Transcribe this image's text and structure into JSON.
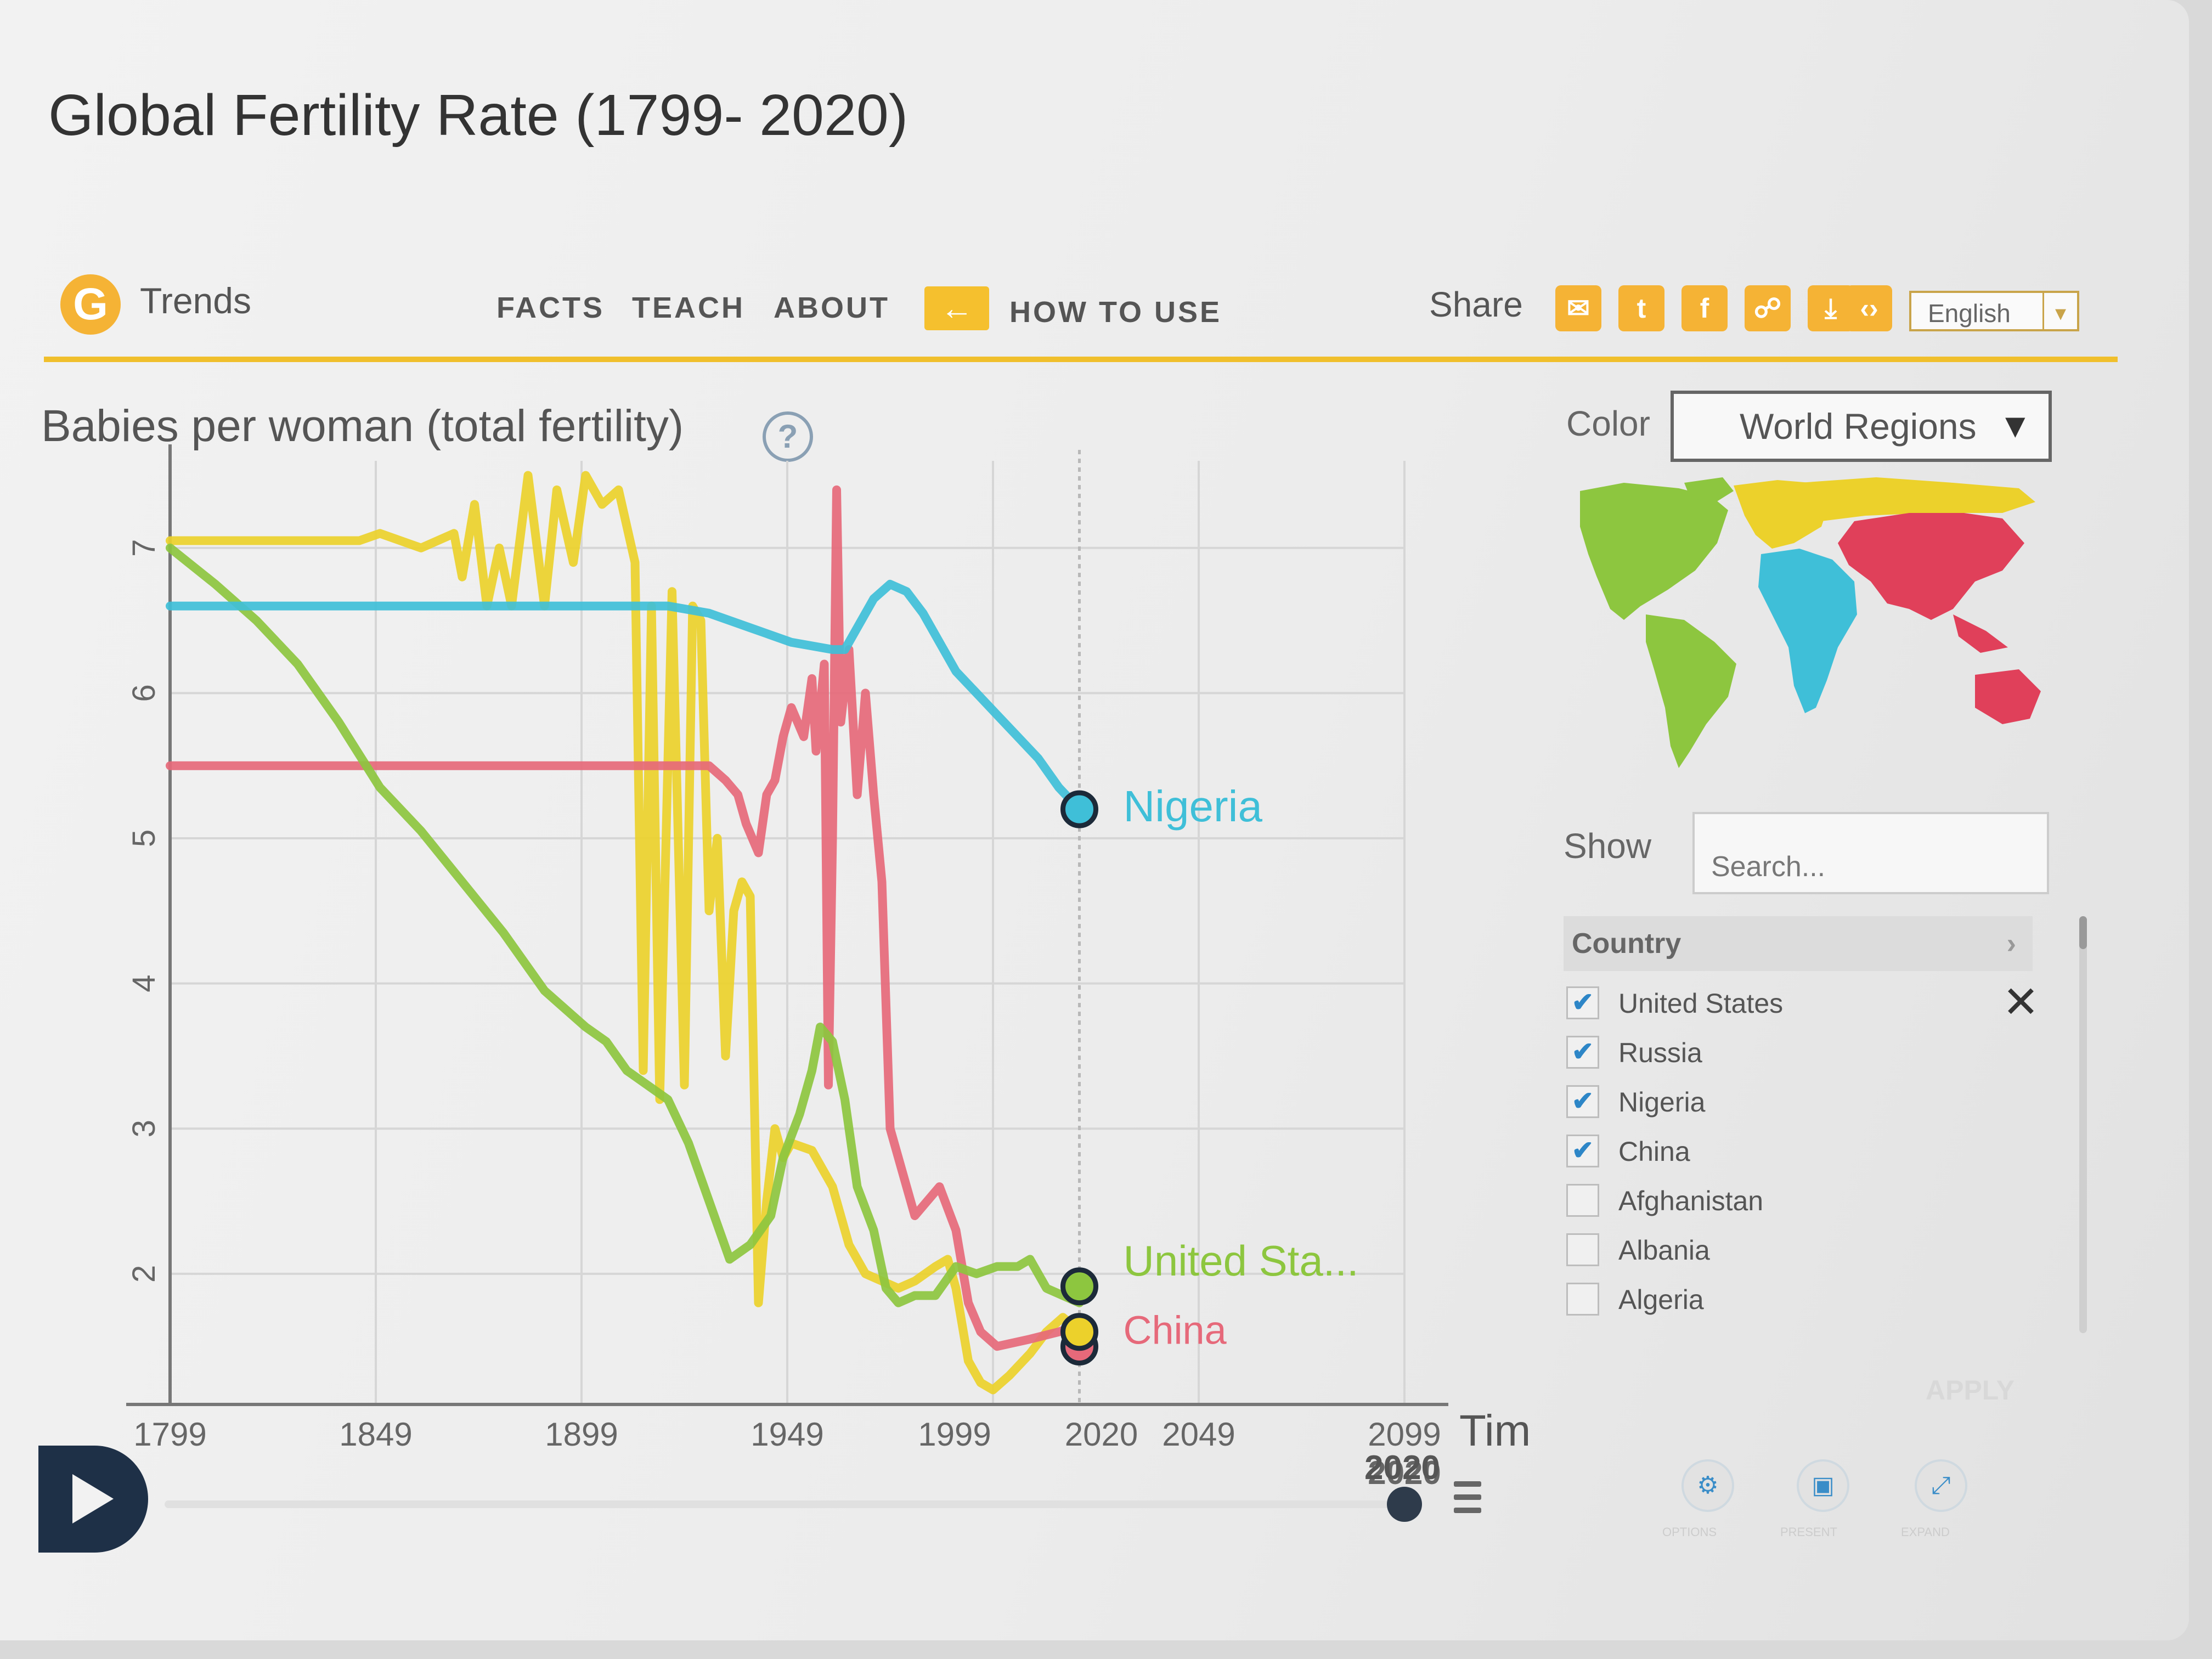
{
  "page": {
    "title": "Global Fertility Rate (1799- 2020)"
  },
  "header": {
    "logo_glyph": "G",
    "brand": "Trends",
    "nav": [
      "FACTS",
      "TEACH",
      "ABOUT"
    ],
    "how_to_use": "HOW TO USE",
    "how_to_use_glyph": "←",
    "share_label": "Share",
    "share_icons": [
      "✉",
      "t",
      "f",
      "☍",
      "⤓",
      "‹›"
    ],
    "language": "English",
    "language_caret": "▾"
  },
  "chart_data": {
    "type": "line",
    "title": "",
    "ylabel": "Babies per woman (total fertility)",
    "xlabel": "Tim",
    "x_ticks": [
      1799,
      1849,
      1899,
      1949,
      1999,
      2020,
      2049,
      2099
    ],
    "y_ticks": [
      2,
      3,
      4,
      5,
      6,
      7
    ],
    "xlim": [
      1799,
      2099
    ],
    "ylim": [
      1.1,
      7.6
    ],
    "current_year": 2020,
    "series": [
      {
        "name": "Nigeria",
        "label": "Nigeria",
        "color": "#3fbfd8",
        "points": [
          [
            1799,
            6.6
          ],
          [
            1900,
            6.6
          ],
          [
            1920,
            6.6
          ],
          [
            1930,
            6.55
          ],
          [
            1940,
            6.45
          ],
          [
            1950,
            6.35
          ],
          [
            1960,
            6.3
          ],
          [
            1963,
            6.3
          ],
          [
            1966,
            6.45
          ],
          [
            1970,
            6.65
          ],
          [
            1974,
            6.75
          ],
          [
            1978,
            6.7
          ],
          [
            1982,
            6.55
          ],
          [
            1986,
            6.35
          ],
          [
            1990,
            6.15
          ],
          [
            1995,
            6.0
          ],
          [
            2000,
            5.85
          ],
          [
            2005,
            5.7
          ],
          [
            2010,
            5.55
          ],
          [
            2015,
            5.35
          ],
          [
            2020,
            5.2
          ]
        ]
      },
      {
        "name": "Russia",
        "label": "",
        "color": "#ecd12b",
        "points": [
          [
            1799,
            7.05
          ],
          [
            1845,
            7.05
          ],
          [
            1850,
            7.1
          ],
          [
            1860,
            7.0
          ],
          [
            1868,
            7.1
          ],
          [
            1870,
            6.8
          ],
          [
            1873,
            7.3
          ],
          [
            1876,
            6.6
          ],
          [
            1879,
            7.0
          ],
          [
            1882,
            6.6
          ],
          [
            1886,
            7.5
          ],
          [
            1890,
            6.6
          ],
          [
            1893,
            7.4
          ],
          [
            1897,
            6.9
          ],
          [
            1900,
            7.5
          ],
          [
            1904,
            7.3
          ],
          [
            1908,
            7.4
          ],
          [
            1912,
            6.9
          ],
          [
            1914,
            3.4
          ],
          [
            1916,
            6.6
          ],
          [
            1918,
            3.2
          ],
          [
            1921,
            6.7
          ],
          [
            1924,
            3.3
          ],
          [
            1926,
            6.6
          ],
          [
            1928,
            6.5
          ],
          [
            1930,
            4.5
          ],
          [
            1932,
            5.0
          ],
          [
            1934,
            3.5
          ],
          [
            1936,
            4.5
          ],
          [
            1938,
            4.7
          ],
          [
            1940,
            4.6
          ],
          [
            1942,
            1.8
          ],
          [
            1944,
            2.5
          ],
          [
            1946,
            3.0
          ],
          [
            1948,
            2.8
          ],
          [
            1950,
            2.9
          ],
          [
            1955,
            2.85
          ],
          [
            1960,
            2.6
          ],
          [
            1964,
            2.2
          ],
          [
            1968,
            2.0
          ],
          [
            1972,
            1.95
          ],
          [
            1976,
            1.9
          ],
          [
            1980,
            1.95
          ],
          [
            1985,
            2.05
          ],
          [
            1988,
            2.1
          ],
          [
            1990,
            1.9
          ],
          [
            1993,
            1.4
          ],
          [
            1996,
            1.25
          ],
          [
            1999,
            1.2
          ],
          [
            2003,
            1.3
          ],
          [
            2008,
            1.45
          ],
          [
            2012,
            1.6
          ],
          [
            2016,
            1.7
          ],
          [
            2020,
            1.6
          ]
        ]
      },
      {
        "name": "China",
        "label": "China",
        "color": "#e6697a",
        "points": [
          [
            1799,
            5.5
          ],
          [
            1927,
            5.5
          ],
          [
            1930,
            5.5
          ],
          [
            1934,
            5.4
          ],
          [
            1937,
            5.3
          ],
          [
            1939,
            5.1
          ],
          [
            1942,
            4.9
          ],
          [
            1944,
            5.3
          ],
          [
            1946,
            5.4
          ],
          [
            1948,
            5.7
          ],
          [
            1950,
            5.9
          ],
          [
            1953,
            5.7
          ],
          [
            1955,
            6.1
          ],
          [
            1956,
            5.6
          ],
          [
            1958,
            6.2
          ],
          [
            1959,
            3.3
          ],
          [
            1960,
            5.0
          ],
          [
            1961,
            7.4
          ],
          [
            1962,
            5.8
          ],
          [
            1964,
            6.3
          ],
          [
            1966,
            5.3
          ],
          [
            1968,
            6.0
          ],
          [
            1970,
            5.3
          ],
          [
            1972,
            4.7
          ],
          [
            1974,
            3.0
          ],
          [
            1976,
            2.8
          ],
          [
            1978,
            2.6
          ],
          [
            1980,
            2.4
          ],
          [
            1983,
            2.5
          ],
          [
            1986,
            2.6
          ],
          [
            1990,
            2.3
          ],
          [
            1993,
            1.8
          ],
          [
            1996,
            1.6
          ],
          [
            2000,
            1.5
          ],
          [
            2008,
            1.55
          ],
          [
            2015,
            1.6
          ],
          [
            2020,
            1.65
          ]
        ]
      },
      {
        "name": "United States",
        "label": "United Sta...",
        "color": "#8dc63f",
        "points": [
          [
            1799,
            7.0
          ],
          [
            1810,
            6.75
          ],
          [
            1820,
            6.5
          ],
          [
            1830,
            6.2
          ],
          [
            1840,
            5.8
          ],
          [
            1850,
            5.35
          ],
          [
            1860,
            5.05
          ],
          [
            1870,
            4.7
          ],
          [
            1880,
            4.35
          ],
          [
            1890,
            3.95
          ],
          [
            1900,
            3.7
          ],
          [
            1905,
            3.6
          ],
          [
            1910,
            3.4
          ],
          [
            1915,
            3.3
          ],
          [
            1920,
            3.2
          ],
          [
            1925,
            2.9
          ],
          [
            1930,
            2.5
          ],
          [
            1935,
            2.1
          ],
          [
            1940,
            2.2
          ],
          [
            1945,
            2.4
          ],
          [
            1948,
            2.8
          ],
          [
            1952,
            3.1
          ],
          [
            1955,
            3.4
          ],
          [
            1957,
            3.7
          ],
          [
            1960,
            3.6
          ],
          [
            1963,
            3.2
          ],
          [
            1966,
            2.6
          ],
          [
            1970,
            2.3
          ],
          [
            1973,
            1.9
          ],
          [
            1976,
            1.8
          ],
          [
            1980,
            1.85
          ],
          [
            1985,
            1.85
          ],
          [
            1990,
            2.05
          ],
          [
            1995,
            2.0
          ],
          [
            2000,
            2.05
          ],
          [
            2005,
            2.05
          ],
          [
            2008,
            2.1
          ],
          [
            2012,
            1.9
          ],
          [
            2016,
            1.85
          ],
          [
            2020,
            1.8
          ]
        ]
      }
    ]
  },
  "sidebar": {
    "color_label": "Color",
    "color_value": "World Regions",
    "select_caret": "▼",
    "show_label": "Show",
    "search_placeholder": "Search...",
    "list_header": "Country",
    "header_chevron": "›",
    "deselect": "✕",
    "countries": [
      {
        "name": "United States",
        "checked": true
      },
      {
        "name": "Russia",
        "checked": true
      },
      {
        "name": "Nigeria",
        "checked": true
      },
      {
        "name": "China",
        "checked": true
      },
      {
        "name": "Afghanistan",
        "checked": false
      },
      {
        "name": "Albania",
        "checked": false
      },
      {
        "name": "Algeria",
        "checked": false
      }
    ],
    "check_glyph": "✔",
    "apply": "APPLY",
    "tools": [
      "⚙",
      "▣",
      "⤢"
    ],
    "tool_labels": [
      "OPTIONS",
      "PRESENT",
      "EXPAND"
    ]
  },
  "timeline": {
    "value": "2020"
  },
  "map_colors": {
    "americas": "#8dc63f",
    "europe": "#ecd12b",
    "africa": "#3fbfd8",
    "asia": "#e0405a"
  }
}
